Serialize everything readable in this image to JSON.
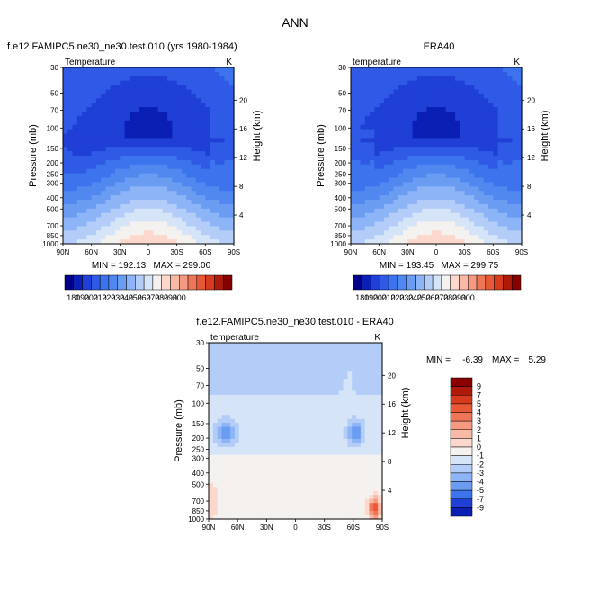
{
  "chart_data": {
    "type": "heatmap",
    "title": "ANN",
    "pressure_ticks": [
      "30",
      "50",
      "70",
      "100",
      "150",
      "200",
      "250",
      "300",
      "400",
      "500",
      "700",
      "850",
      "1000"
    ],
    "lat_ticks": [
      "90N",
      "60N",
      "30N",
      "0",
      "30S",
      "60S",
      "90S"
    ],
    "height_ticks": [
      "20",
      "16",
      "12",
      "8",
      "4"
    ],
    "ylabel": "Pressure (mb)",
    "ylabel_right": "Height (km)",
    "panels": [
      {
        "id": "model",
        "title": "f.e12.FAMIPC5.ne30_ne30.test.010 (yrs 1980-1984)",
        "variable": "Temperature",
        "units": "K",
        "min": "192.13",
        "max": "299.00",
        "stats_text": "MIN = 192.13   MAX = 299.00",
        "colorbar_labels": [
          "180",
          "190",
          "200",
          "210",
          "220",
          "230",
          "240",
          "250",
          "260",
          "270",
          "280",
          "290",
          "300"
        ],
        "colorbar_colors": [
          "#00008b",
          "#0a1fb3",
          "#1f3fd6",
          "#2e5ae6",
          "#3c74ee",
          "#5088f0",
          "#6a9cf2",
          "#8db4f6",
          "#b3cdf8",
          "#d6e4f8",
          "#f4f1ef",
          "#fbd7cc",
          "#f8b9a6",
          "#f59a80",
          "#ee7657",
          "#e85836",
          "#d73a1c",
          "#b01a0a",
          "#850000"
        ]
      },
      {
        "id": "obs",
        "title": "ERA40",
        "variable": "temperature",
        "units": "K",
        "min": "193.45",
        "max": "299.75",
        "stats_text": "MIN = 193.45   MAX = 299.75",
        "colorbar_labels": [
          "180",
          "190",
          "200",
          "210",
          "220",
          "230",
          "240",
          "250",
          "260",
          "270",
          "280",
          "290",
          "300"
        ],
        "colorbar_colors": [
          "#00008b",
          "#0a1fb3",
          "#1f3fd6",
          "#2e5ae6",
          "#3c74ee",
          "#5088f0",
          "#6a9cf2",
          "#8db4f6",
          "#b3cdf8",
          "#d6e4f8",
          "#f4f1ef",
          "#fbd7cc",
          "#f8b9a6",
          "#f59a80",
          "#ee7657",
          "#e85836",
          "#d73a1c",
          "#b01a0a",
          "#850000"
        ]
      },
      {
        "id": "diff",
        "title": "f.e12.FAMIPC5.ne30_ne30.test.010 - ERA40",
        "variable": "temperature",
        "units": "K",
        "min": "-6.39",
        "max": "5.29",
        "min_label": "MIN =",
        "max_label": "MAX =",
        "colorbar_labels": [
          "9",
          "7",
          "5",
          "4",
          "3",
          "2",
          "1",
          "0",
          "-1",
          "-2",
          "-3",
          "-4",
          "-5",
          "-7",
          "-9"
        ],
        "colorbar_colors": [
          "#8b0000",
          "#b01a0a",
          "#d73a1c",
          "#e85836",
          "#ee7657",
          "#f59a80",
          "#f8b9a6",
          "#fbd7cc",
          "#f4f1ef",
          "#d6e4f8",
          "#b3cdf8",
          "#8db4f6",
          "#6a9cf2",
          "#3c74ee",
          "#1f3fd6",
          "#0a1fb3"
        ]
      }
    ]
  }
}
